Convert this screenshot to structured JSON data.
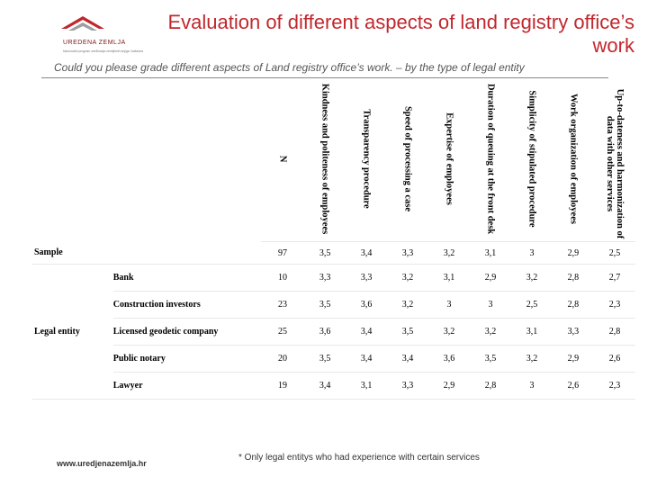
{
  "logo": {
    "name": "UREDENA ZEMLJA",
    "tagline": "Nacionalni program sređivanja zemljišnih knjiga i katastra"
  },
  "title": "Evaluation of different aspects of land registry office’s work",
  "subtitle": "Could you please grade different aspects of Land registry office’s work. – by the type of legal entity",
  "table": {
    "columns": [
      "N",
      "Kindness and politeness of employees",
      "Transparency procedure",
      "Speed of processing a case",
      "Expertise of employees",
      "Duration of queuing at the front desk",
      "Simplicity of stipulated procedure",
      "Work organization of employees",
      "Up-to-dateness and harmonization of data with other services"
    ],
    "sample": {
      "label": "Sample",
      "values": [
        "97",
        "3,5",
        "3,4",
        "3,3",
        "3,2",
        "3,1",
        "3",
        "2,9",
        "2,5"
      ]
    },
    "group_label": "Legal entity",
    "rows": [
      {
        "label": "Bank",
        "values": [
          "10",
          "3,3",
          "3,3",
          "3,2",
          "3,1",
          "2,9",
          "3,2",
          "2,8",
          "2,7"
        ]
      },
      {
        "label": "Construction investors",
        "values": [
          "23",
          "3,5",
          "3,6",
          "3,2",
          "3",
          "3",
          "2,5",
          "2,8",
          "2,3"
        ]
      },
      {
        "label": "Licensed geodetic company",
        "values": [
          "25",
          "3,6",
          "3,4",
          "3,5",
          "3,2",
          "3,2",
          "3,1",
          "3,3",
          "2,8"
        ]
      },
      {
        "label": "Public notary",
        "values": [
          "20",
          "3,5",
          "3,4",
          "3,4",
          "3,6",
          "3,5",
          "3,2",
          "2,9",
          "2,6"
        ]
      },
      {
        "label": "Lawyer",
        "values": [
          "19",
          "3,4",
          "3,1",
          "3,3",
          "2,9",
          "2,8",
          "3",
          "2,6",
          "2,3"
        ]
      }
    ]
  },
  "footer": {
    "url": "www.uredjenazemlja.hr",
    "note": "* Only legal entitys who had experience with certain services"
  },
  "colors": {
    "title": "#c1272d",
    "logo": "#c1272d"
  },
  "icons": {
    "logo": "uredena-zemlja-logo"
  }
}
